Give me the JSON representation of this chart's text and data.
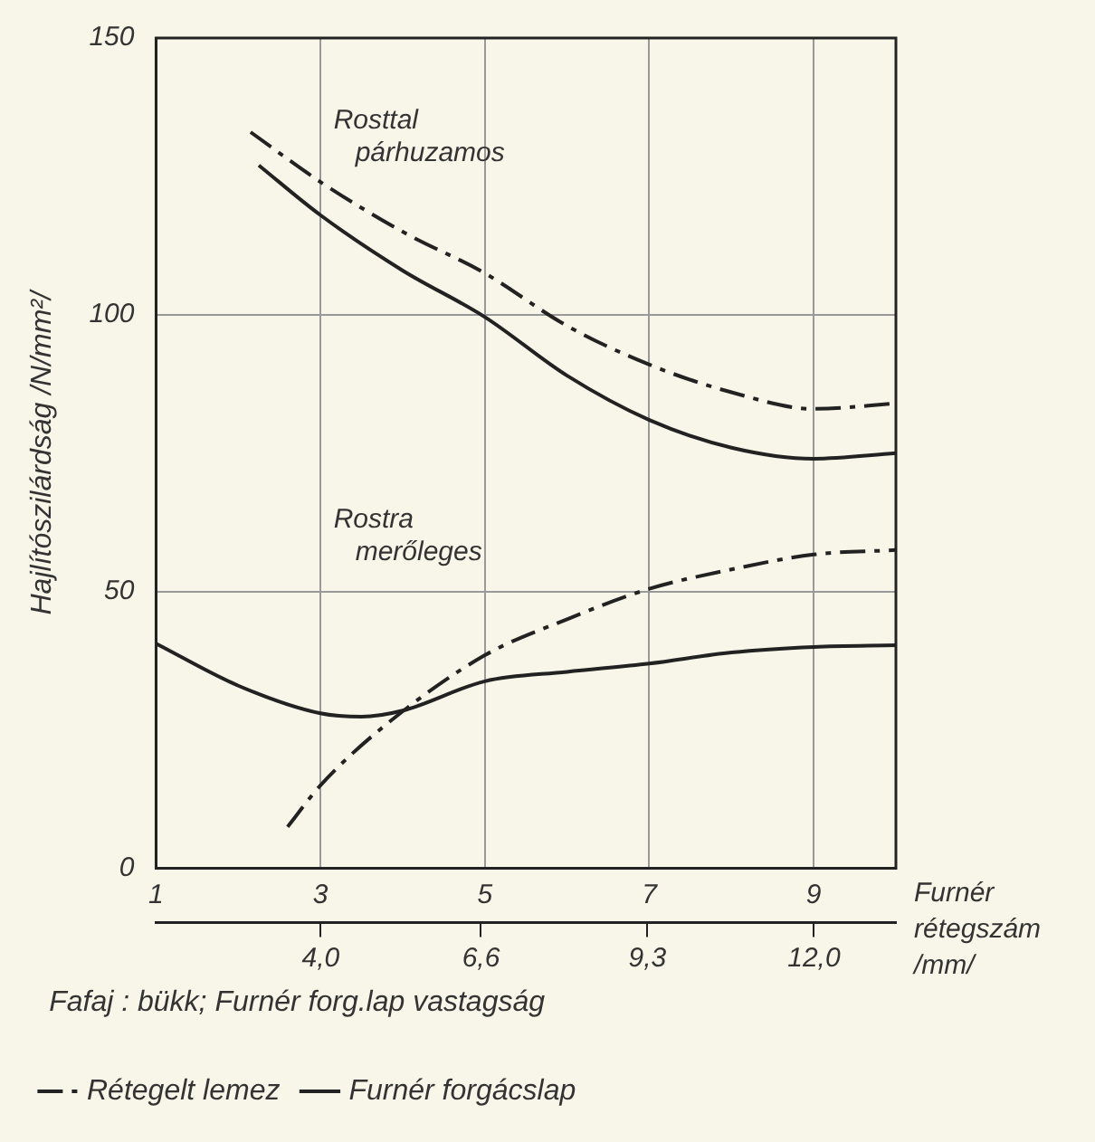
{
  "chart_data": {
    "type": "line",
    "ylabel": "Hajlítószilárdság /N/mm²/",
    "xlabel": "Furnér rétegszám",
    "x2label": "/mm/",
    "xlim": [
      1,
      10
    ],
    "xticks": [
      1,
      3,
      5,
      7,
      9
    ],
    "ylim": [
      0,
      150
    ],
    "yticks": [
      0,
      50,
      100,
      150
    ],
    "x2lim": [
      1.33,
      13.33
    ],
    "x2ticks": [
      {
        "value": 4,
        "label": "4,0"
      },
      {
        "value": 6.6,
        "label": "6,6"
      },
      {
        "value": 9.3,
        "label": "9,3"
      },
      {
        "value": 12,
        "label": "12,0"
      }
    ],
    "grid": true,
    "legend": "bottom",
    "series": [
      {
        "name": "Rétegelt lemez",
        "color": "#222222",
        "line_style": "dashed",
        "x": [
          2.15,
          3,
          4,
          5,
          6,
          7,
          8,
          9,
          10
        ],
        "values": [
          133,
          124,
          115,
          107.5,
          98,
          91,
          86,
          83,
          84
        ]
      },
      {
        "name": "Furnér forgácslap",
        "color": "#222222",
        "line_style": "solid",
        "x": [
          2.25,
          3,
          4,
          5,
          6,
          7,
          8,
          9,
          10
        ],
        "values": [
          127,
          118,
          108,
          99.6,
          89,
          81,
          76,
          74,
          75
        ]
      },
      {
        "color": "#222222",
        "line_style": "dashed",
        "x": [
          2.6,
          3,
          3.8,
          5,
          6,
          7,
          8,
          9,
          10
        ],
        "values": [
          7.5,
          15,
          26,
          38.5,
          45,
          50.5,
          54,
          56.7,
          57.5
        ]
      },
      {
        "color": "#222222",
        "line_style": "solid",
        "x": [
          1,
          2,
          3,
          3.5,
          4,
          5,
          6,
          7,
          8,
          9,
          10
        ],
        "values": [
          40.6,
          33,
          28,
          27.4,
          28.5,
          33.8,
          35.5,
          37,
          39,
          40,
          40.3
        ]
      }
    ],
    "annotations": [
      "Rosttal párhuzamos",
      "Rostra merőleges",
      "Fafaj : bükk; Furnér forg.lap vastagság"
    ]
  }
}
